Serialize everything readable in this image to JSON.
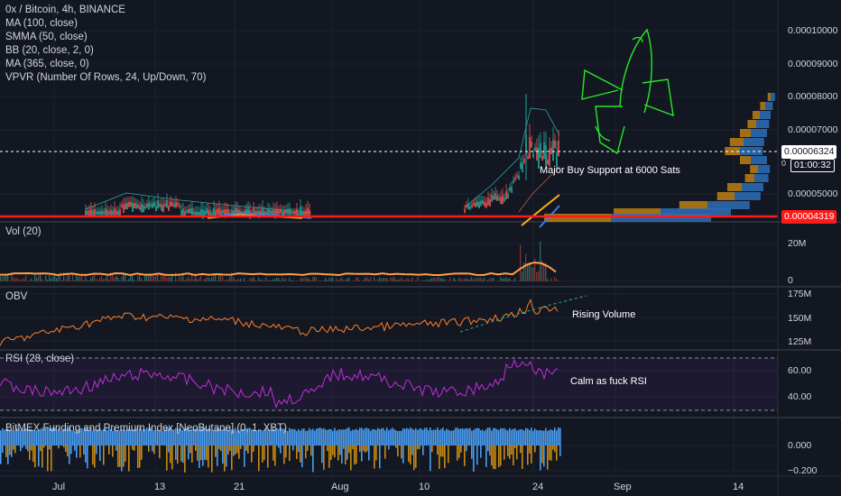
{
  "legend": {
    "title": "0x / Bitcoin, 4h, BINANCE",
    "lines": [
      "MA (100, close)",
      "SMMA (50, close)",
      "BB (20, close, 2, 0)",
      "MA (365, close, 0)",
      "VPVR (Number Of Rows, 24, Up/Down, 70)"
    ]
  },
  "price_axis": {
    "labels": [
      "0.00010000",
      "0.00009000",
      "0.00008000",
      "0.00007000",
      "0.00005000"
    ],
    "current_price": "0.00006324",
    "countdown": "01:00:32",
    "support_price": "0.00004319",
    "countdown_prefix": "0"
  },
  "panes": {
    "vol": {
      "label": "Vol (20)",
      "axis": [
        "20M",
        "0"
      ]
    },
    "obv": {
      "label": "OBV",
      "axis": [
        "175M",
        "150M",
        "125M"
      ],
      "annotation": "Rising Volume"
    },
    "rsi": {
      "label": "RSI (28, close)",
      "axis": [
        "60.00",
        "40.00"
      ],
      "annotation": "Calm as fuck RSI"
    },
    "funding": {
      "label": "BitMEX Funding and Premium Index [NeoButane] (0, 1, XBT)",
      "axis": [
        "0.000",
        "−0.200"
      ]
    }
  },
  "annotations": {
    "support": "Major Buy Support at 6000 Sats"
  },
  "time_axis": [
    "Jul",
    "13",
    "21",
    "Aug",
    "10",
    "24",
    "Sep",
    "14"
  ],
  "colors": {
    "background": "#131722",
    "candle_up": "#26a69a",
    "candle_down": "#ef5350",
    "support_line": "#ff1a1a",
    "volume_ma": "#ff9e45",
    "obv": "#ff7f27",
    "rsi": "#c12fd6",
    "funding_blue": "#4a9df0",
    "funding_orange": "#c88a12",
    "rocket": "#27e827"
  }
}
